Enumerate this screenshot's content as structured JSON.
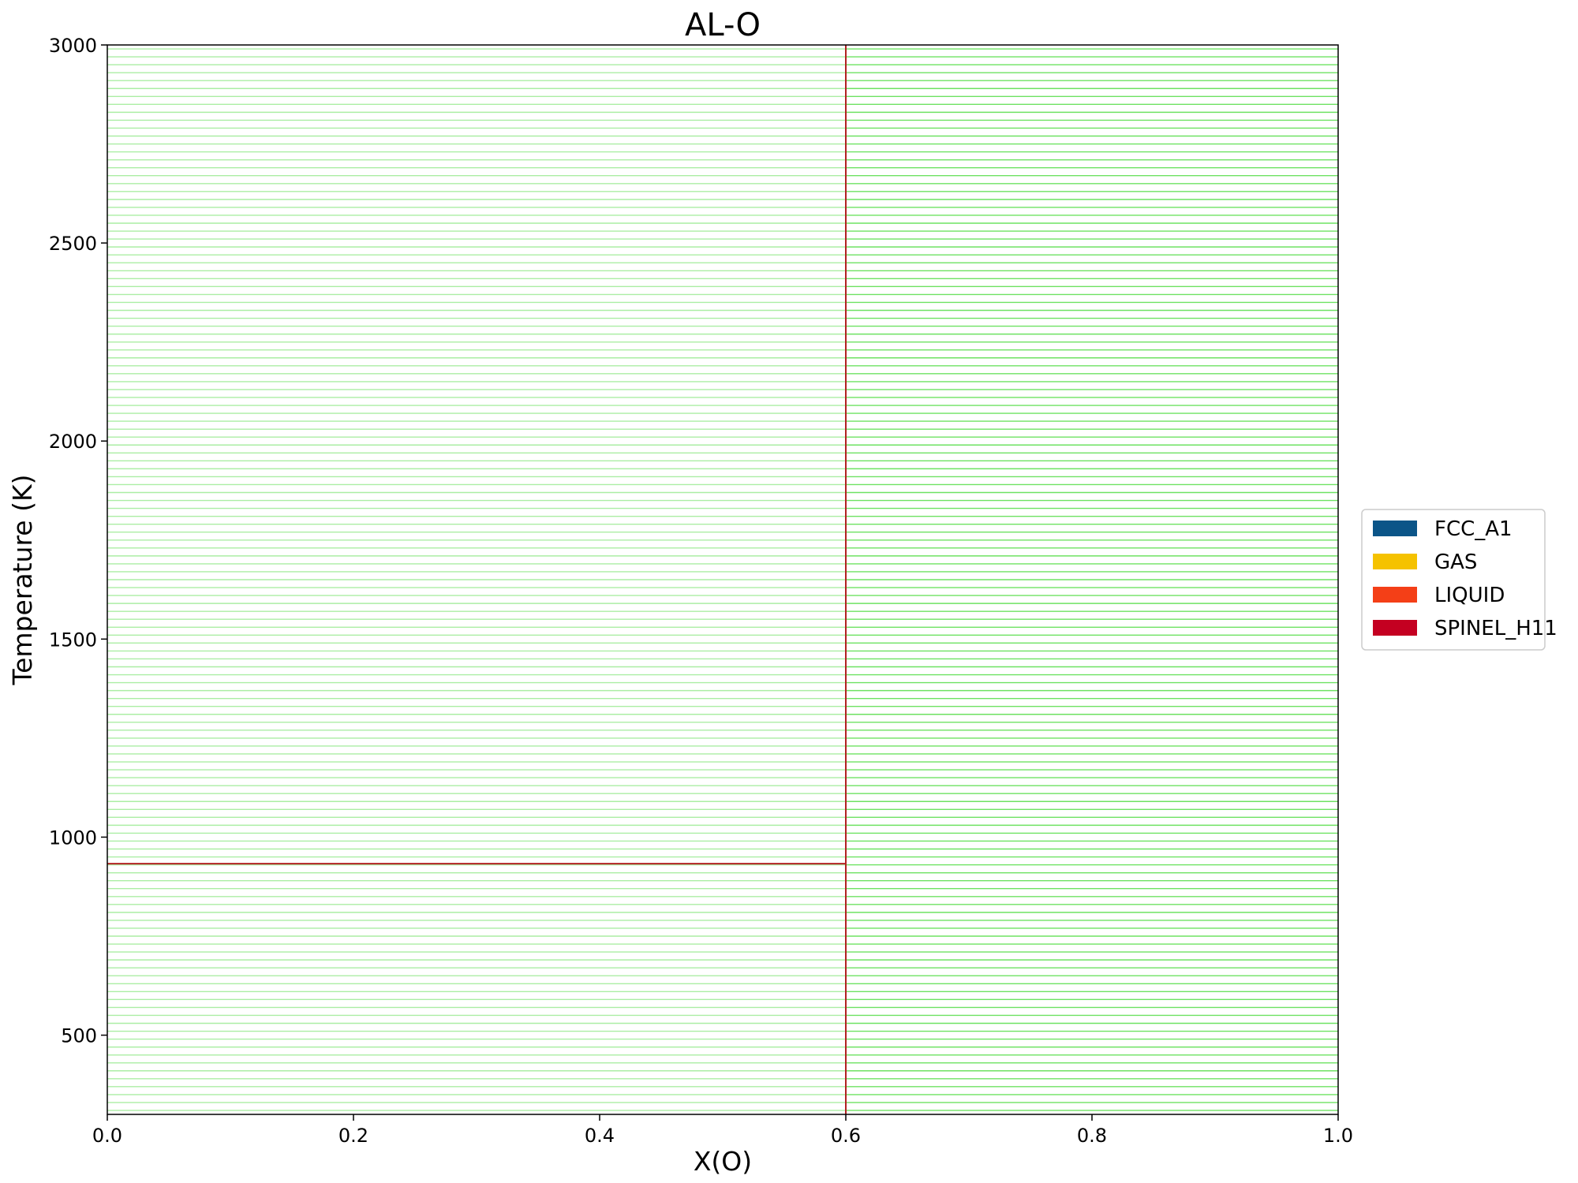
{
  "chart_data": {
    "type": "line",
    "title": "AL-O",
    "xlabel": "X(O)",
    "ylabel": "Temperature (K)",
    "xlim": [
      0.0,
      1.0
    ],
    "ylim": [
      300,
      3000
    ],
    "x_ticks": [
      "0.0",
      "0.2",
      "0.4",
      "0.6",
      "0.8",
      "1.0"
    ],
    "y_ticks": [
      "500",
      "1000",
      "1500",
      "2000",
      "2500",
      "3000"
    ],
    "grid": false,
    "legend_position": "right, outside plot",
    "legend": [
      {
        "label": "FCC_A1",
        "color": "#0b5588"
      },
      {
        "label": "GAS",
        "color": "#f5c200"
      },
      {
        "label": "LIQUID",
        "color": "#f43f17"
      },
      {
        "label": "SPINEL_H11",
        "color": "#c40021"
      }
    ],
    "tieline_color": "#66e05a",
    "phase_boundary_color": "#b22222",
    "tielines": {
      "t_start": 310,
      "t_end": 2990,
      "t_step": 20,
      "regions": [
        {
          "x_range": [
            0.0,
            0.6
          ],
          "opacity": 0.55
        },
        {
          "x_range": [
            0.6,
            1.0
          ],
          "opacity": 0.95
        }
      ]
    },
    "phase_boundaries": [
      {
        "x": [
          0.6,
          0.6
        ],
        "y": [
          300,
          3000
        ]
      },
      {
        "x": [
          0.0,
          0.6
        ],
        "y": [
          933,
          933
        ]
      }
    ]
  }
}
